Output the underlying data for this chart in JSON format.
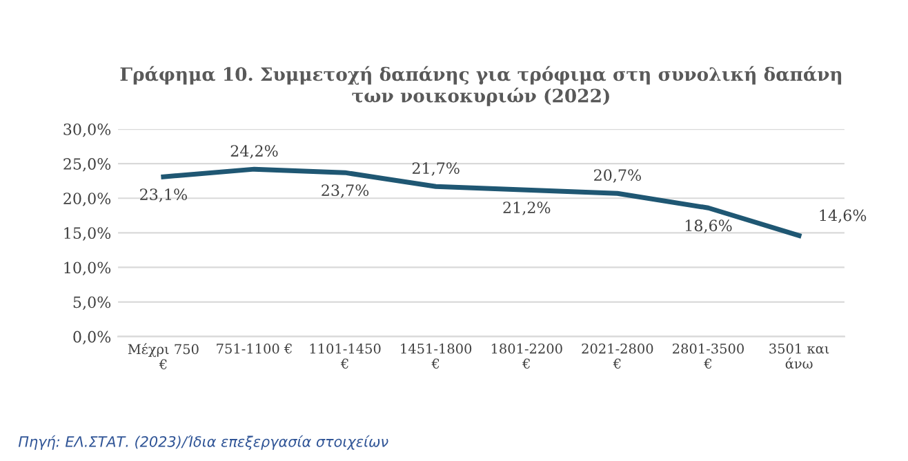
{
  "chart_data": {
    "type": "line",
    "title": "Γράφημα 10. Συμμετοχή δαπάνης για τρόφιμα στη συνολική δαπάνη\nτων νοικοκυριών (2022)",
    "categories": [
      "Μέχρι 750\n€",
      "751-1100 €",
      "1101-1450\n€",
      "1451-1800\n€",
      "1801-2200\n€",
      "2021-2800\n€",
      "2801-3500\n€",
      "3501 και\nάνω"
    ],
    "series": [
      {
        "color": "#1f5773",
        "values": [
          23.1,
          24.2,
          23.7,
          21.7,
          21.2,
          20.7,
          18.6,
          14.6
        ],
        "value_labels": [
          "23,1%",
          "24,2%",
          "23,7%",
          "21,7%",
          "21,2%",
          "20,7%",
          "18,6%",
          "14,6%"
        ]
      }
    ],
    "ylim": [
      0,
      30
    ],
    "yticks": [
      {
        "value": 0,
        "label": "0,0%"
      },
      {
        "value": 5,
        "label": "5,0%"
      },
      {
        "value": 10,
        "label": "10,0%"
      },
      {
        "value": 15,
        "label": "15,0%"
      },
      {
        "value": 20,
        "label": "20,0%"
      },
      {
        "value": 25,
        "label": "25,0%"
      },
      {
        "value": 30,
        "label": "30,0%"
      }
    ],
    "grid": "y",
    "marker": "none",
    "line_style": "solid",
    "annotations": [
      "Πηγή: ΕΛ.ΣΤΑΤ. (2023)/Ίδια επεξεργασία στοιχείων"
    ]
  }
}
